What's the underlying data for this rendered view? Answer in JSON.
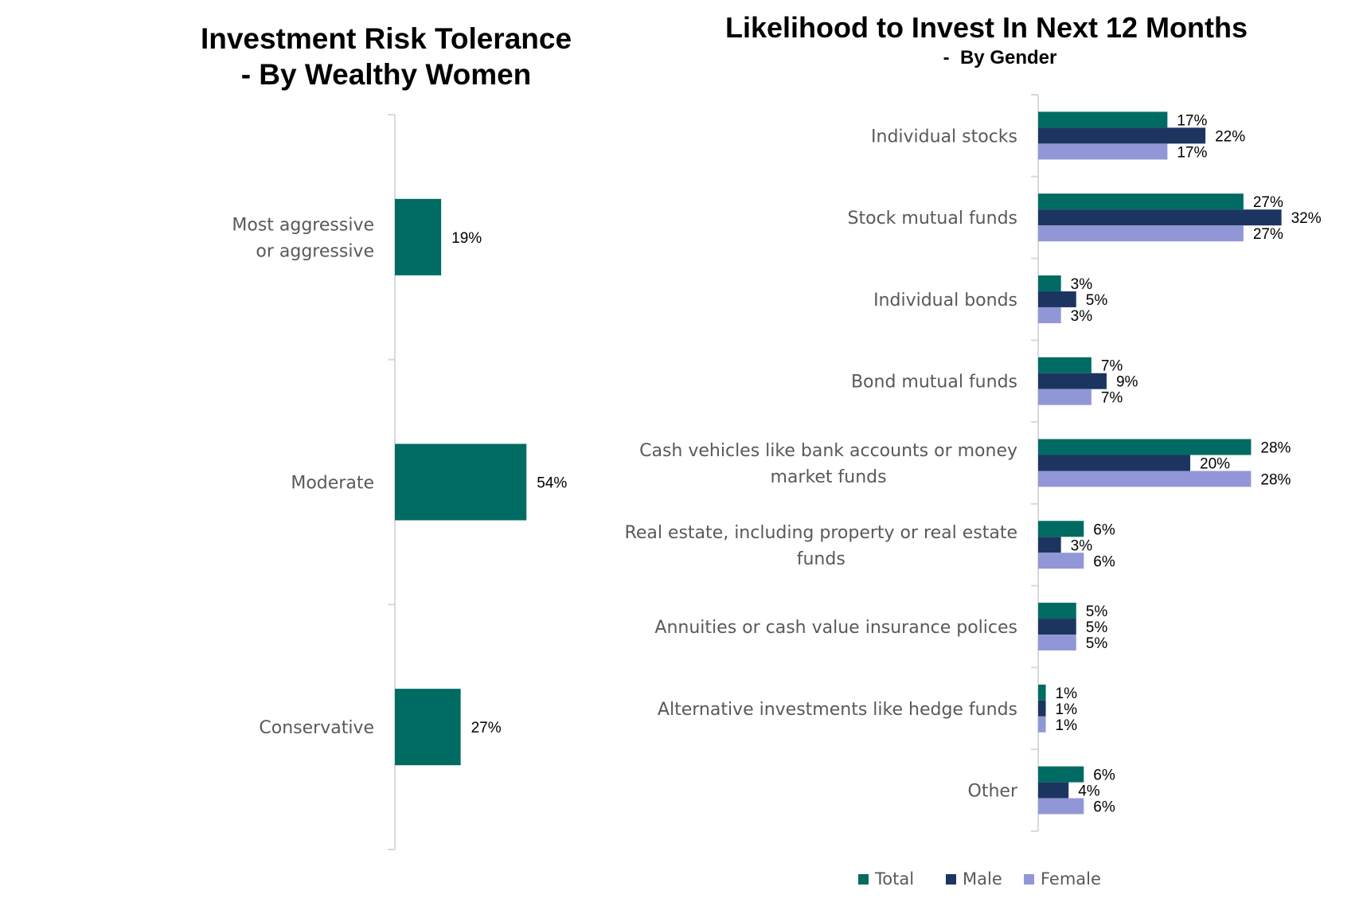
{
  "chart_data": [
    {
      "type": "bar",
      "orientation": "horizontal",
      "title": "Investment Risk Tolerance",
      "subtitle": "- By Wealthy Women",
      "categories": [
        "Most aggressive or aggressive",
        "Moderate",
        "Conservative"
      ],
      "values": [
        19,
        54,
        27
      ],
      "value_labels": [
        "19%",
        "54%",
        "27%"
      ],
      "color": "#006B63",
      "xlim": [
        0,
        100
      ]
    },
    {
      "type": "bar",
      "orientation": "horizontal",
      "title": "Likelihood to Invest In Next 12 Months",
      "subtitle": "-  By Gender",
      "categories": [
        "Individual stocks",
        "Stock mutual funds",
        "Individual bonds",
        "Bond mutual funds",
        "Cash vehicles like bank accounts or money market funds",
        "Real estate, including property or real estate funds",
        "Annuities or cash value insurance polices",
        "Alternative investments like hedge funds",
        "Other"
      ],
      "series": [
        {
          "name": "Total",
          "color": "#006B63",
          "values": [
            17,
            27,
            3,
            7,
            28,
            6,
            5,
            1,
            6
          ]
        },
        {
          "name": "Male",
          "color": "#1C3560",
          "values": [
            22,
            32,
            5,
            9,
            20,
            3,
            5,
            1,
            4
          ]
        },
        {
          "name": "Female",
          "color": "#9197D6",
          "values": [
            17,
            27,
            3,
            7,
            28,
            6,
            5,
            1,
            6
          ]
        }
      ],
      "legend": "bottom",
      "xlim": [
        0,
        40
      ]
    }
  ]
}
